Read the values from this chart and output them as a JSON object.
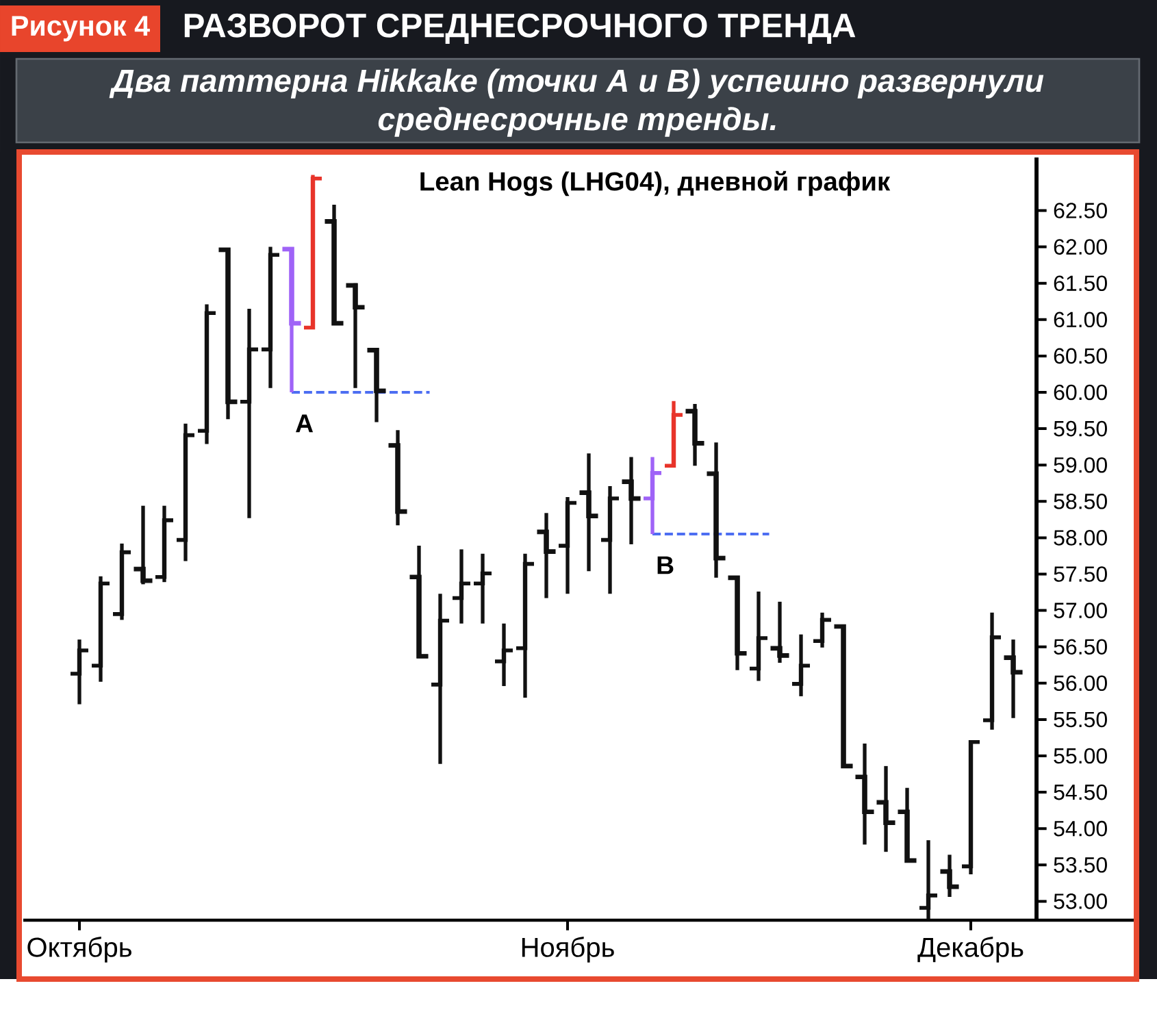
{
  "chart_data": {
    "type": "candlestick",
    "title": "РАЗВОРОТ СРЕДНЕСРОЧНОГО ТРЕНДА",
    "subtitle": "Два паттерна Hikkake (точки A и B) успешно развернули среднесрочные тренды.",
    "annotations": [
      "Рисунок 4",
      "Lean Hogs (LHG04), дневной график",
      {
        "text": "A",
        "y": 60.0
      },
      {
        "text": "B",
        "y": 58.05
      }
    ],
    "categories": [
      "Октябрь",
      null,
      null,
      null,
      null,
      null,
      null,
      null,
      null,
      null,
      null,
      null,
      null,
      null,
      null,
      null,
      null,
      null,
      null,
      null,
      null,
      null,
      null,
      "Ноябрь",
      null,
      null,
      null,
      null,
      null,
      null,
      null,
      null,
      null,
      null,
      null,
      null,
      null,
      null,
      null,
      null,
      null,
      null,
      "Декабрь",
      null,
      null
    ],
    "ohlc": [
      [
        56.13,
        56.6,
        55.71,
        56.45
      ],
      [
        56.24,
        57.47,
        56.02,
        57.37
      ],
      [
        56.95,
        57.92,
        56.87,
        57.8
      ],
      [
        57.57,
        58.44,
        57.36,
        57.41
      ],
      [
        57.46,
        58.44,
        57.39,
        58.24
      ],
      [
        57.97,
        59.57,
        57.68,
        59.41
      ],
      [
        59.47,
        61.21,
        59.29,
        61.09
      ],
      [
        61.96,
        61.98,
        59.63,
        59.87
      ],
      [
        59.87,
        61.15,
        58.27,
        60.59
      ],
      [
        60.59,
        62.0,
        60.06,
        61.89
      ],
      [
        61.97,
        61.97,
        60.0,
        60.95
      ],
      [
        60.89,
        62.99,
        60.89,
        62.94
      ],
      [
        62.35,
        62.58,
        60.93,
        60.95
      ],
      [
        61.47,
        61.5,
        60.06,
        61.17
      ],
      [
        60.58,
        60.58,
        59.59,
        60.02
      ],
      [
        59.27,
        59.48,
        58.17,
        58.36
      ],
      [
        57.46,
        57.89,
        56.35,
        56.37
      ],
      [
        55.98,
        57.23,
        54.89,
        56.86
      ],
      [
        57.17,
        57.84,
        56.82,
        57.37
      ],
      [
        57.37,
        57.78,
        56.82,
        57.51
      ],
      [
        56.3,
        56.82,
        55.96,
        56.45
      ],
      [
        56.48,
        57.78,
        55.8,
        57.64
      ],
      [
        58.08,
        58.34,
        57.17,
        57.81
      ],
      [
        57.89,
        58.56,
        57.23,
        58.48
      ],
      [
        58.62,
        59.16,
        57.54,
        58.3
      ],
      [
        57.97,
        58.71,
        57.23,
        58.54
      ],
      [
        58.77,
        59.11,
        57.91,
        58.54
      ],
      [
        58.54,
        59.11,
        58.05,
        58.89
      ],
      [
        58.99,
        59.88,
        58.99,
        59.69
      ],
      [
        59.74,
        59.84,
        58.99,
        59.3
      ],
      [
        58.88,
        59.31,
        57.45,
        57.72
      ],
      [
        57.45,
        57.45,
        56.18,
        56.41
      ],
      [
        56.2,
        57.26,
        56.03,
        56.62
      ],
      [
        56.48,
        57.12,
        56.28,
        56.38
      ],
      [
        55.99,
        56.67,
        55.82,
        56.24
      ],
      [
        56.58,
        56.97,
        56.49,
        56.87
      ],
      [
        56.78,
        56.8,
        54.86,
        54.86
      ],
      [
        54.71,
        55.17,
        53.78,
        54.23
      ],
      [
        54.36,
        54.86,
        53.68,
        54.08
      ],
      [
        54.23,
        54.56,
        53.56,
        53.56
      ],
      [
        52.91,
        53.84,
        52.75,
        53.08
      ],
      [
        53.41,
        53.64,
        53.06,
        53.2
      ],
      [
        53.48,
        55.2,
        53.37,
        55.19
      ],
      [
        55.49,
        56.97,
        55.36,
        56.63
      ],
      [
        56.35,
        56.6,
        55.52,
        56.15
      ]
    ],
    "colors": [
      "#111111",
      "#111111",
      "#111111",
      "#111111",
      "#111111",
      "#111111",
      "#111111",
      "#111111",
      "#111111",
      "#111111",
      "#9f63f7",
      "#e8342a",
      "#111111",
      "#111111",
      "#111111",
      "#111111",
      "#111111",
      "#111111",
      "#111111",
      "#111111",
      "#111111",
      "#111111",
      "#111111",
      "#111111",
      "#111111",
      "#111111",
      "#111111",
      "#9f63f7",
      "#e8342a",
      "#111111",
      "#111111",
      "#111111",
      "#111111",
      "#111111",
      "#111111",
      "#111111",
      "#111111",
      "#111111",
      "#111111",
      "#111111",
      "#111111",
      "#111111",
      "#111111",
      "#111111",
      "#111111"
    ],
    "ylim": [
      52.74,
      63.23
    ],
    "yticks": [
      {
        "value": 53.0,
        "label": "53.00"
      },
      {
        "value": 53.5,
        "label": "53.50"
      },
      {
        "value": 54.0,
        "label": "54.00"
      },
      {
        "value": 54.5,
        "label": "54.50"
      },
      {
        "value": 55.0,
        "label": "55.00"
      },
      {
        "value": 55.5,
        "label": "55.50"
      },
      {
        "value": 56.0,
        "label": "56.00"
      },
      {
        "value": 56.5,
        "label": "56.50"
      },
      {
        "value": 57.0,
        "label": "57.00"
      },
      {
        "value": 57.5,
        "label": "57.50"
      },
      {
        "value": 58.0,
        "label": "58.00"
      },
      {
        "value": 58.5,
        "label": "58.50"
      },
      {
        "value": 59.0,
        "label": "59.00"
      },
      {
        "value": 59.5,
        "label": "59.50"
      },
      {
        "value": 60.0,
        "label": "60.00"
      },
      {
        "value": 60.5,
        "label": "60.50"
      },
      {
        "value": 61.0,
        "label": "61.00"
      },
      {
        "value": 61.5,
        "label": "61.50"
      },
      {
        "value": 62.0,
        "label": "62.00"
      },
      {
        "value": 62.5,
        "label": "62.50"
      }
    ],
    "ref_lines": [
      {
        "axis": "y",
        "value": 60.0,
        "color": "#4d6ef2",
        "line_style": "dashed"
      },
      {
        "axis": "y",
        "value": 58.05,
        "color": "#4d6ef2",
        "line_style": "dashed"
      }
    ]
  }
}
